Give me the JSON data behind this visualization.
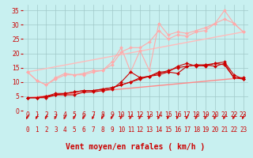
{
  "title": "",
  "xlabel": "Vent moyen/en rafales ( km/h )",
  "ylabel": "",
  "bg_color": "#c8f0f0",
  "grid_color": "#a0c8c8",
  "x_ticks": [
    0,
    1,
    2,
    3,
    4,
    5,
    6,
    7,
    8,
    9,
    10,
    11,
    12,
    13,
    14,
    15,
    16,
    17,
    18,
    19,
    20,
    21,
    22,
    23
  ],
  "y_ticks": [
    0,
    5,
    10,
    15,
    20,
    25,
    30,
    35
  ],
  "xlim": [
    -0.5,
    23.5
  ],
  "ylim": [
    0,
    37
  ],
  "line1_x": [
    0,
    1,
    2,
    3,
    4,
    5,
    6,
    7,
    8,
    9,
    10,
    11,
    12,
    13,
    14,
    15,
    16,
    17,
    18,
    19,
    20,
    21,
    22,
    23
  ],
  "line1_y": [
    4.5,
    4.5,
    4.5,
    5.5,
    5.5,
    5.5,
    6.5,
    6.5,
    7.0,
    7.5,
    10.0,
    13.5,
    11.5,
    12.0,
    13.5,
    13.5,
    13.0,
    15.5,
    16.0,
    15.5,
    16.5,
    17.0,
    12.5,
    11.0
  ],
  "line1_color": "#cc0000",
  "line2_x": [
    0,
    1,
    2,
    3,
    4,
    5,
    6,
    7,
    8,
    9,
    10,
    11,
    12,
    13,
    14,
    15,
    16,
    17,
    18,
    19,
    20,
    21,
    22,
    23
  ],
  "line2_y": [
    4.5,
    4.5,
    5.0,
    6.0,
    6.0,
    6.5,
    7.0,
    7.0,
    7.5,
    8.0,
    9.0,
    10.0,
    11.5,
    12.0,
    13.0,
    14.0,
    15.0,
    15.5,
    16.0,
    16.0,
    16.5,
    16.0,
    11.5,
    11.0
  ],
  "line2_color": "#cc0000",
  "line3_x": [
    0,
    1,
    2,
    3,
    4,
    5,
    6,
    7,
    8,
    9,
    10,
    11,
    12,
    13,
    14,
    15,
    16,
    17,
    18,
    19,
    20,
    21,
    22,
    23
  ],
  "line3_y": [
    4.5,
    4.5,
    5.0,
    5.5,
    6.0,
    6.5,
    7.0,
    7.0,
    7.5,
    8.0,
    9.0,
    10.0,
    11.0,
    12.0,
    12.5,
    13.5,
    15.5,
    16.5,
    15.5,
    16.0,
    15.5,
    16.5,
    11.5,
    11.5
  ],
  "line3_color": "#cc0000",
  "line4_x": [
    0,
    1,
    2,
    3,
    4,
    5,
    6,
    7,
    8,
    9,
    10,
    11,
    12,
    13,
    14,
    15,
    16,
    17,
    18,
    19,
    20,
    21,
    22,
    23
  ],
  "line4_y": [
    13.5,
    10.5,
    9.0,
    11.5,
    13.0,
    12.5,
    13.0,
    14.0,
    14.0,
    17.0,
    22.0,
    13.5,
    21.0,
    14.0,
    30.5,
    26.5,
    27.5,
    27.0,
    28.0,
    29.0,
    30.5,
    35.0,
    30.5,
    27.5
  ],
  "line4_color": "#ffaaaa",
  "line5_x": [
    0,
    1,
    2,
    3,
    4,
    5,
    6,
    7,
    8,
    9,
    10,
    11,
    12,
    13,
    14,
    15,
    16,
    17,
    18,
    19,
    20,
    21,
    22,
    23
  ],
  "line5_y": [
    13.5,
    10.5,
    9.0,
    11.0,
    12.5,
    12.5,
    12.5,
    13.5,
    14.0,
    16.0,
    20.5,
    22.0,
    22.0,
    24.0,
    28.0,
    25.0,
    26.5,
    26.0,
    27.5,
    28.0,
    30.5,
    32.0,
    30.5,
    27.5
  ],
  "line5_color": "#ffaaaa",
  "line6_x": [
    0,
    23
  ],
  "line6_y": [
    4.5,
    11.5
  ],
  "line6_color": "#ff8888",
  "line7_x": [
    0,
    23
  ],
  "line7_y": [
    13.5,
    27.5
  ],
  "line7_color": "#ffbbbb",
  "marker_style": "D",
  "marker_size": 2.0,
  "linewidth": 0.8,
  "tick_font_size": 5.5,
  "label_font_size": 7,
  "arrow_color": "#cc0000",
  "red_line_color": "#cc0000"
}
